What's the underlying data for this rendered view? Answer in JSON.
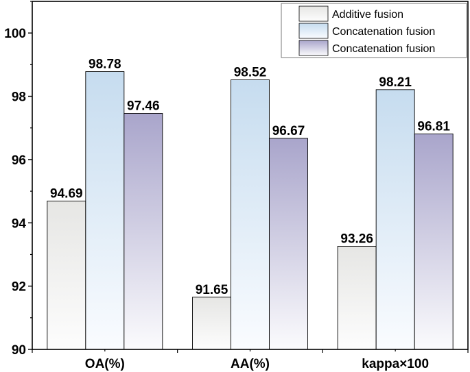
{
  "chart_data": {
    "type": "bar",
    "title": "",
    "xlabel": "",
    "ylabel": "",
    "categories": [
      "OA(%)",
      "AA(%)",
      "kappa×100"
    ],
    "ylim": [
      90,
      101
    ],
    "yticks": [
      90,
      92,
      94,
      96,
      98,
      100
    ],
    "grid": false,
    "legend_position": "top-right",
    "series": [
      {
        "name": "Additive fusion",
        "values": [
          94.69,
          91.65,
          93.26
        ],
        "color_top": "#e6e6e4",
        "color_bottom": "#fdfdfd"
      },
      {
        "name": "Concatenation fusion",
        "values": [
          98.78,
          98.52,
          98.21
        ],
        "color_top": "#c6dcef",
        "color_bottom": "#fafcff"
      },
      {
        "name": "Concatenation fusion",
        "values": [
          97.46,
          96.67,
          96.81
        ],
        "color_top": "#a9a5cb",
        "color_bottom": "#fbfbfd"
      }
    ],
    "data_labels": [
      [
        "94.69",
        "91.65",
        "93.26"
      ],
      [
        "98.78",
        "98.52",
        "98.21"
      ],
      [
        "97.46",
        "96.67",
        "96.81"
      ]
    ]
  }
}
